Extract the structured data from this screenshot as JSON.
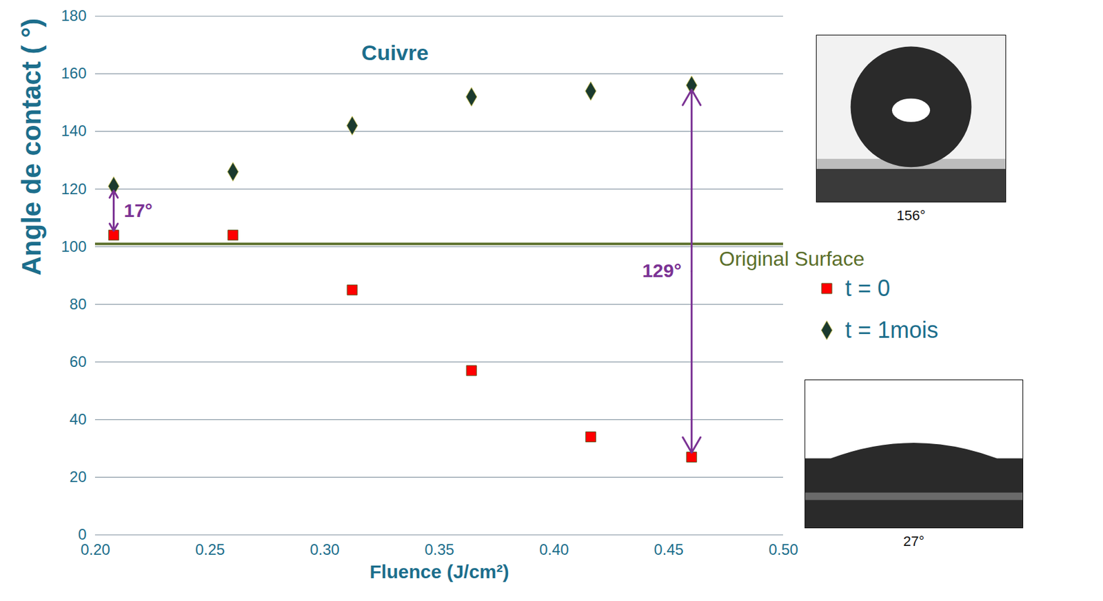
{
  "chart_data": {
    "type": "scatter",
    "title": "Cuivre",
    "x_label": "Fluence (J/cm²)",
    "y_label": "Angle de contact ( °)",
    "x": [
      0.208,
      0.26,
      0.312,
      0.364,
      0.416,
      0.46
    ],
    "series": [
      {
        "name": "t = 0",
        "color": "#ff0000",
        "marker": "square",
        "values": [
          104,
          104,
          85,
          57,
          34,
          27
        ]
      },
      {
        "name": "t = 1mois",
        "color": "#1b3a2e",
        "marker": "diamond",
        "values": [
          121,
          126,
          142,
          152,
          154,
          156
        ]
      }
    ],
    "xlim": [
      0.2,
      0.5
    ],
    "xticks": [
      {
        "value": 0.2,
        "label": "0.20"
      },
      {
        "value": 0.25,
        "label": "0.25"
      },
      {
        "value": 0.3,
        "label": "0.30"
      },
      {
        "value": 0.35,
        "label": "0.35"
      },
      {
        "value": 0.4,
        "label": "0.40"
      },
      {
        "value": 0.45,
        "label": "0.45"
      },
      {
        "value": 0.5,
        "label": "0.50"
      }
    ],
    "ylim": [
      0,
      180
    ],
    "yticks": [
      0,
      20,
      40,
      60,
      80,
      100,
      120,
      140,
      160,
      180
    ],
    "grid": true,
    "legend": "right",
    "reference_lines": [
      {
        "y": 101,
        "label": "Original Surface",
        "color": "#5b6f2b"
      }
    ],
    "annotations": [
      {
        "text": "17°",
        "x": 0.208,
        "y_from": 104,
        "y_to": 121,
        "color": "#7b3294"
      },
      {
        "text": "129°",
        "x": 0.46,
        "y_from": 27,
        "y_to": 156,
        "color": "#7b3294"
      }
    ],
    "insets": [
      {
        "caption": "156°"
      },
      {
        "caption": "27°"
      }
    ]
  }
}
